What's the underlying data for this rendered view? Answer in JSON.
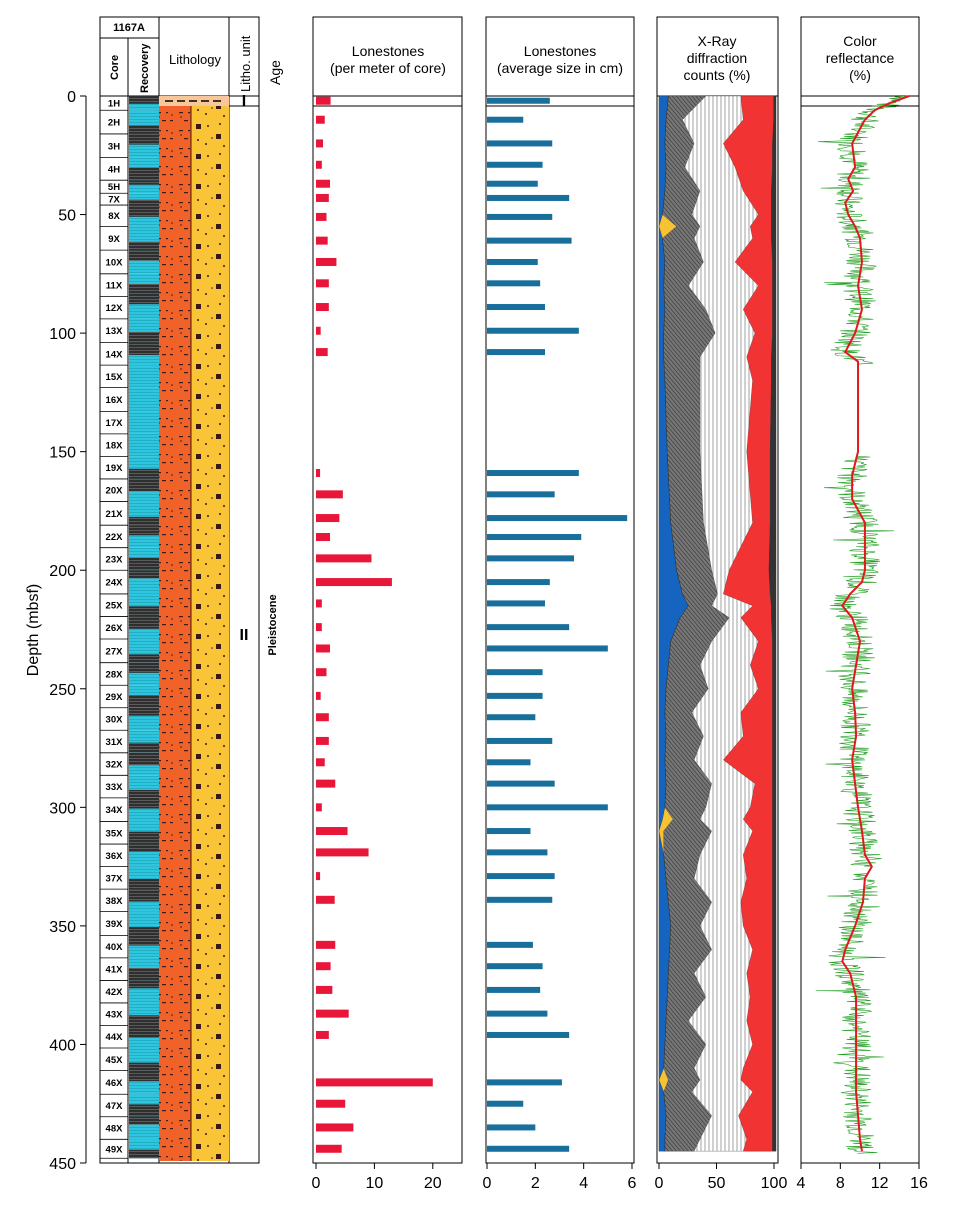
{
  "header": {
    "site": "1167A",
    "core_label": "Core",
    "recovery_label": "Recovery",
    "lithology_label": "Lithology",
    "litho_unit_label": "Litho. unit",
    "age_label": "Age",
    "unit_I": "I",
    "unit_II": "II",
    "age_value": "Pleistocene"
  },
  "depth_axis": {
    "label": "Depth (mbsf)",
    "ticks": [
      0,
      50,
      100,
      150,
      200,
      250,
      300,
      350,
      400,
      450
    ],
    "range": [
      0,
      450
    ]
  },
  "cores": [
    {
      "name": "1H",
      "top": 0,
      "bottom": 6
    },
    {
      "name": "2H",
      "top": 6,
      "bottom": 16
    },
    {
      "name": "3H",
      "top": 16,
      "bottom": 26
    },
    {
      "name": "4H",
      "top": 26,
      "bottom": 35.5
    },
    {
      "name": "5H",
      "top": 35.5,
      "bottom": 41
    },
    {
      "name": "7X",
      "top": 41,
      "bottom": 46
    },
    {
      "name": "8X",
      "top": 46,
      "bottom": 55
    },
    {
      "name": "9X",
      "top": 55,
      "bottom": 65
    },
    {
      "name": "10X",
      "top": 65,
      "bottom": 75
    },
    {
      "name": "11X",
      "top": 75,
      "bottom": 84.5
    },
    {
      "name": "12X",
      "top": 84.5,
      "bottom": 94
    },
    {
      "name": "13X",
      "top": 94,
      "bottom": 104
    },
    {
      "name": "14X",
      "top": 104,
      "bottom": 113.5
    },
    {
      "name": "15X",
      "top": 113.5,
      "bottom": 123
    },
    {
      "name": "16X",
      "top": 123,
      "bottom": 133
    },
    {
      "name": "17X",
      "top": 133,
      "bottom": 142.5
    },
    {
      "name": "18X",
      "top": 142.5,
      "bottom": 152
    },
    {
      "name": "19X",
      "top": 152,
      "bottom": 161.5
    },
    {
      "name": "20X",
      "top": 161.5,
      "bottom": 171
    },
    {
      "name": "21X",
      "top": 171,
      "bottom": 181
    },
    {
      "name": "22X",
      "top": 181,
      "bottom": 190.5
    },
    {
      "name": "23X",
      "top": 190.5,
      "bottom": 200
    },
    {
      "name": "24X",
      "top": 200,
      "bottom": 210
    },
    {
      "name": "25X",
      "top": 210,
      "bottom": 219.5
    },
    {
      "name": "26X",
      "top": 219.5,
      "bottom": 229
    },
    {
      "name": "27X",
      "top": 229,
      "bottom": 239
    },
    {
      "name": "28X",
      "top": 239,
      "bottom": 248.5
    },
    {
      "name": "29X",
      "top": 248.5,
      "bottom": 258
    },
    {
      "name": "30X",
      "top": 258,
      "bottom": 267.5
    },
    {
      "name": "31X",
      "top": 267.5,
      "bottom": 277
    },
    {
      "name": "32X",
      "top": 277,
      "bottom": 286.5
    },
    {
      "name": "33X",
      "top": 286.5,
      "bottom": 296
    },
    {
      "name": "34X",
      "top": 296,
      "bottom": 306
    },
    {
      "name": "35X",
      "top": 306,
      "bottom": 315.5
    },
    {
      "name": "36X",
      "top": 315.5,
      "bottom": 325
    },
    {
      "name": "37X",
      "top": 325,
      "bottom": 334.5
    },
    {
      "name": "38X",
      "top": 334.5,
      "bottom": 344
    },
    {
      "name": "39X",
      "top": 344,
      "bottom": 354
    },
    {
      "name": "40X",
      "top": 354,
      "bottom": 363.5
    },
    {
      "name": "41X",
      "top": 363.5,
      "bottom": 373
    },
    {
      "name": "42X",
      "top": 373,
      "bottom": 382.5
    },
    {
      "name": "43X",
      "top": 382.5,
      "bottom": 392
    },
    {
      "name": "44X",
      "top": 392,
      "bottom": 401.5
    },
    {
      "name": "45X",
      "top": 401.5,
      "bottom": 411
    },
    {
      "name": "46X",
      "top": 411,
      "bottom": 421
    },
    {
      "name": "47X",
      "top": 421,
      "bottom": 430.5
    },
    {
      "name": "48X",
      "top": 430.5,
      "bottom": 440
    },
    {
      "name": "49X",
      "top": 440,
      "bottom": 448
    }
  ],
  "colors": {
    "lonestone_count": "#e8173a",
    "lonestone_size": "#186f9c",
    "xrd_blue": "#1565c0",
    "xrd_yellow": "#f7c234",
    "xrd_red": "#f23333",
    "xrd_dark": "#333333",
    "reflectance_raw": "#1e9e1e",
    "reflectance_smooth": "#e01919",
    "recovery_cyan": "#2ec6de",
    "recovery_dark": "#2f2f2f",
    "lith_orange": "#f1622b",
    "lith_yellow": "#f9c436"
  },
  "chart_data": [
    {
      "type": "bar",
      "orientation": "horizontal",
      "title": "Lonestones\n(per meter of core)",
      "x_ticks": [
        0,
        10,
        20
      ],
      "xlim": [
        0,
        25
      ],
      "depths": [
        2,
        10,
        20,
        29,
        37,
        43,
        51,
        61,
        70,
        79,
        89,
        99,
        108,
        159,
        168,
        178,
        186,
        195,
        205,
        214,
        224,
        233,
        243,
        253,
        262,
        272,
        281,
        290,
        300,
        310,
        319,
        329,
        339,
        358,
        367,
        377,
        387,
        396,
        416,
        425,
        435,
        444
      ],
      "values": [
        2.5,
        1.5,
        1.2,
        1.0,
        2.4,
        2.2,
        1.8,
        2.0,
        3.5,
        2.2,
        2.2,
        0.8,
        2.0,
        0.7,
        4.6,
        4.0,
        2.4,
        9.5,
        13.0,
        1.0,
        1.0,
        2.4,
        1.8,
        0.8,
        2.2,
        2.2,
        1.5,
        3.3,
        1.0,
        5.4,
        9.0,
        0.7,
        3.2,
        3.3,
        2.5,
        2.8,
        5.6,
        2.2,
        20.0,
        5.0,
        6.4,
        4.4
      ]
    },
    {
      "type": "bar",
      "orientation": "horizontal",
      "title": "Lonestones\n(average size in cm)",
      "x_ticks": [
        0,
        2,
        4,
        6
      ],
      "xlim": [
        0,
        6
      ],
      "depths": [
        2,
        10,
        20,
        29,
        37,
        43,
        51,
        61,
        70,
        79,
        89,
        99,
        108,
        159,
        168,
        178,
        186,
        195,
        205,
        214,
        224,
        233,
        243,
        253,
        262,
        272,
        281,
        290,
        300,
        310,
        319,
        329,
        339,
        358,
        367,
        377,
        387,
        396,
        416,
        425,
        435,
        444
      ],
      "values": [
        2.6,
        1.5,
        2.7,
        2.3,
        2.1,
        3.4,
        2.7,
        3.5,
        2.1,
        2.2,
        2.4,
        3.8,
        2.4,
        3.8,
        2.8,
        5.8,
        3.9,
        3.6,
        2.6,
        2.4,
        3.4,
        5.0,
        2.3,
        2.3,
        2.0,
        2.7,
        1.8,
        2.8,
        5.0,
        1.8,
        2.5,
        2.8,
        2.7,
        1.9,
        2.3,
        2.2,
        2.5,
        3.4,
        3.1,
        1.5,
        2.0,
        3.4
      ]
    },
    {
      "type": "area",
      "title": "X-Ray\ndiffraction\ncounts (%)",
      "x_ticks": [
        0,
        50,
        100
      ],
      "xlim": [
        0,
        100
      ],
      "series": [
        {
          "depths": [
            0,
            10,
            20,
            30,
            40,
            50,
            55,
            60,
            70,
            80,
            90,
            100,
            110,
            120,
            150,
            180,
            200,
            210,
            215,
            220,
            230,
            240,
            250,
            260,
            270,
            280,
            290,
            300,
            305,
            310,
            320,
            330,
            340,
            350,
            360,
            370,
            380,
            390,
            400,
            410,
            415,
            420,
            430,
            440,
            445
          ],
          "blue": [
            8,
            6,
            5,
            6,
            5,
            3,
            0,
            3,
            5,
            4,
            5,
            4,
            4,
            5,
            7,
            10,
            15,
            20,
            25,
            18,
            10,
            8,
            6,
            5,
            6,
            5,
            6,
            5,
            3,
            0,
            4,
            6,
            8,
            10,
            9,
            8,
            7,
            6,
            5,
            4,
            0,
            4,
            6,
            5,
            5
          ],
          "yellow": [
            8,
            6,
            5,
            6,
            5,
            3,
            15,
            3,
            5,
            4,
            5,
            4,
            4,
            5,
            7,
            10,
            15,
            20,
            25,
            18,
            10,
            8,
            6,
            5,
            6,
            5,
            6,
            5,
            12,
            4,
            4,
            6,
            8,
            10,
            9,
            8,
            7,
            6,
            5,
            4,
            8,
            4,
            6,
            5,
            5
          ],
          "dark_grey": [
            40,
            20,
            30,
            22,
            35,
            28,
            35,
            30,
            38,
            25,
            40,
            48,
            35,
            35,
            35,
            38,
            45,
            50,
            45,
            60,
            45,
            35,
            42,
            28,
            38,
            30,
            45,
            40,
            35,
            45,
            35,
            30,
            45,
            35,
            45,
            30,
            40,
            25,
            40,
            30,
            35,
            28,
            45,
            35,
            30
          ],
          "red_left": [
            70,
            72,
            55,
            65,
            72,
            85,
            78,
            80,
            65,
            85,
            72,
            82,
            75,
            80,
            75,
            80,
            60,
            55,
            80,
            70,
            85,
            78,
            85,
            70,
            72,
            55,
            82,
            78,
            72,
            80,
            72,
            75,
            70,
            72,
            80,
            75,
            78,
            75,
            80,
            72,
            70,
            80,
            68,
            75,
            72
          ],
          "black_from": [
            98,
            98,
            97,
            97,
            96,
            96,
            96,
            96,
            97,
            97,
            97,
            97,
            96,
            96,
            95,
            95,
            94,
            95,
            96,
            96,
            97,
            97,
            97,
            97,
            97,
            97,
            97,
            97,
            97,
            97,
            97,
            97,
            97,
            97,
            97,
            97,
            97,
            97,
            97,
            97,
            97,
            97,
            97,
            97,
            97
          ]
        }
      ]
    },
    {
      "type": "line",
      "title": "Color\nreflectance\n(%)",
      "x_ticks": [
        4,
        8,
        12,
        16
      ],
      "xlim": [
        4,
        16
      ],
      "smoothed": {
        "depths": [
          0,
          3,
          6,
          10,
          20,
          30,
          35,
          40,
          45,
          50,
          55,
          60,
          70,
          80,
          90,
          100,
          108,
          112,
          120,
          150,
          160,
          170,
          180,
          190,
          200,
          205,
          210,
          215,
          220,
          230,
          240,
          250,
          260,
          270,
          280,
          290,
          300,
          310,
          320,
          325,
          330,
          340,
          350,
          360,
          365,
          370,
          380,
          390,
          400,
          410,
          420,
          430,
          440,
          445
        ],
        "values": [
          15,
          13,
          11.5,
          10.5,
          9.2,
          9.5,
          8.8,
          9.3,
          8.5,
          8.8,
          9.5,
          10,
          10.2,
          9.8,
          10.2,
          9.5,
          8.5,
          9.8,
          9.8,
          9.8,
          9.2,
          9.2,
          10.5,
          10.5,
          10.5,
          10.2,
          9,
          8.2,
          9.2,
          10,
          9.6,
          9.2,
          9.5,
          9.6,
          9.2,
          9.5,
          9.8,
          10.2,
          10.5,
          11.2,
          10.5,
          10.3,
          9.5,
          8.5,
          8.2,
          9.0,
          9.6,
          9.6,
          9.6,
          9.6,
          9.6,
          9.8,
          10,
          10.2
        ]
      }
    }
  ]
}
